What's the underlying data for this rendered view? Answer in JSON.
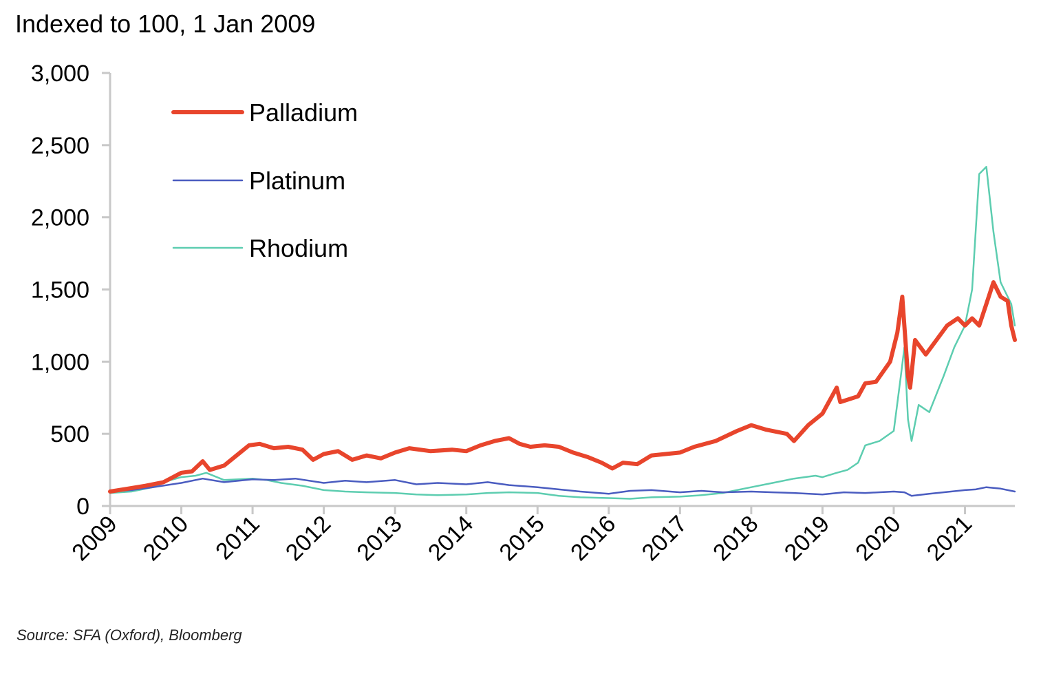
{
  "chart_data": {
    "type": "line",
    "title": "Indexed to 100, 1 Jan 2009",
    "source": "Source: SFA (Oxford), Bloomberg",
    "xlabel": "",
    "ylabel": "",
    "xlim": [
      2009.0,
      2021.7
    ],
    "ylim": [
      0,
      3000
    ],
    "y_ticks": [
      0,
      500,
      1000,
      1500,
      2000,
      2500,
      3000
    ],
    "y_tick_labels": [
      "0",
      "500",
      "1,000",
      "1,500",
      "2,000",
      "2,500",
      "3,000"
    ],
    "x_ticks": [
      2009,
      2010,
      2011,
      2012,
      2013,
      2014,
      2015,
      2016,
      2017,
      2018,
      2019,
      2020,
      2021
    ],
    "x_tick_labels": [
      "2009",
      "2010",
      "2011",
      "2012",
      "2013",
      "2014",
      "2015",
      "2016",
      "2017",
      "2018",
      "2019",
      "2020",
      "2021"
    ],
    "grid": false,
    "legend_position": "top-left",
    "series": [
      {
        "name": "Palladium",
        "color": "#e8452c",
        "width": 6,
        "x": [
          2009.0,
          2009.25,
          2009.5,
          2009.75,
          2010.0,
          2010.15,
          2010.3,
          2010.4,
          2010.6,
          2010.8,
          2010.95,
          2011.1,
          2011.3,
          2011.5,
          2011.7,
          2011.85,
          2012.0,
          2012.2,
          2012.4,
          2012.6,
          2012.8,
          2013.0,
          2013.2,
          2013.5,
          2013.8,
          2014.0,
          2014.2,
          2014.4,
          2014.6,
          2014.75,
          2014.9,
          2015.1,
          2015.3,
          2015.5,
          2015.7,
          2015.9,
          2016.05,
          2016.2,
          2016.4,
          2016.6,
          2016.8,
          2017.0,
          2017.2,
          2017.5,
          2017.8,
          2018.0,
          2018.2,
          2018.5,
          2018.6,
          2018.8,
          2019.0,
          2019.2,
          2019.25,
          2019.5,
          2019.6,
          2019.75,
          2019.95,
          2020.05,
          2020.12,
          2020.2,
          2020.23,
          2020.3,
          2020.45,
          2020.6,
          2020.75,
          2020.9,
          2021.0,
          2021.1,
          2021.2,
          2021.3,
          2021.4,
          2021.5,
          2021.6,
          2021.65,
          2021.7
        ],
        "y": [
          100,
          120,
          140,
          165,
          230,
          240,
          310,
          250,
          280,
          360,
          420,
          430,
          400,
          410,
          390,
          320,
          360,
          380,
          320,
          350,
          330,
          370,
          400,
          380,
          390,
          380,
          420,
          450,
          470,
          430,
          410,
          420,
          410,
          370,
          340,
          300,
          260,
          300,
          290,
          350,
          360,
          370,
          410,
          450,
          520,
          560,
          530,
          500,
          450,
          560,
          640,
          820,
          720,
          760,
          850,
          860,
          1000,
          1200,
          1450,
          900,
          820,
          1150,
          1050,
          1150,
          1250,
          1300,
          1250,
          1300,
          1250,
          1400,
          1550,
          1450,
          1420,
          1250,
          1150
        ]
      },
      {
        "name": "Platinum",
        "color": "#4a5cc0",
        "width": 2.5,
        "x": [
          2009.0,
          2009.3,
          2009.6,
          2010.0,
          2010.3,
          2010.6,
          2011.0,
          2011.3,
          2011.6,
          2012.0,
          2012.3,
          2012.6,
          2013.0,
          2013.3,
          2013.6,
          2014.0,
          2014.3,
          2014.6,
          2015.0,
          2015.3,
          2015.6,
          2016.0,
          2016.3,
          2016.6,
          2017.0,
          2017.3,
          2017.6,
          2018.0,
          2018.3,
          2018.6,
          2019.0,
          2019.3,
          2019.6,
          2020.0,
          2020.15,
          2020.25,
          2020.5,
          2021.0,
          2021.15,
          2021.3,
          2021.5,
          2021.7
        ],
        "y": [
          100,
          110,
          130,
          160,
          190,
          165,
          185,
          180,
          190,
          160,
          175,
          165,
          180,
          150,
          160,
          150,
          165,
          145,
          130,
          115,
          100,
          85,
          105,
          110,
          95,
          105,
          95,
          100,
          95,
          90,
          80,
          95,
          90,
          100,
          95,
          70,
          85,
          110,
          115,
          130,
          120,
          100
        ]
      },
      {
        "name": "Rhodium",
        "color": "#5dcdb0",
        "width": 2.5,
        "x": [
          2009.0,
          2009.3,
          2009.6,
          2009.85,
          2010.0,
          2010.2,
          2010.35,
          2010.6,
          2011.0,
          2011.2,
          2011.4,
          2011.7,
          2012.0,
          2012.3,
          2012.6,
          2013.0,
          2013.3,
          2013.6,
          2014.0,
          2014.3,
          2014.6,
          2015.0,
          2015.3,
          2015.6,
          2016.0,
          2016.3,
          2016.6,
          2017.0,
          2017.3,
          2017.6,
          2017.8,
          2018.0,
          2018.3,
          2018.6,
          2018.9,
          2019.0,
          2019.2,
          2019.35,
          2019.5,
          2019.6,
          2019.8,
          2020.0,
          2020.1,
          2020.15,
          2020.2,
          2020.25,
          2020.35,
          2020.5,
          2020.7,
          2020.85,
          2021.0,
          2021.1,
          2021.2,
          2021.3,
          2021.4,
          2021.5,
          2021.6,
          2021.65,
          2021.7
        ],
        "y": [
          90,
          100,
          130,
          180,
          200,
          210,
          230,
          180,
          190,
          180,
          160,
          140,
          110,
          100,
          95,
          90,
          80,
          75,
          80,
          90,
          95,
          90,
          70,
          60,
          55,
          50,
          60,
          65,
          75,
          90,
          110,
          130,
          160,
          190,
          210,
          200,
          230,
          250,
          300,
          420,
          450,
          520,
          900,
          1100,
          600,
          450,
          700,
          650,
          900,
          1100,
          1250,
          1500,
          2300,
          2350,
          1900,
          1550,
          1450,
          1400,
          1250
        ]
      }
    ]
  }
}
